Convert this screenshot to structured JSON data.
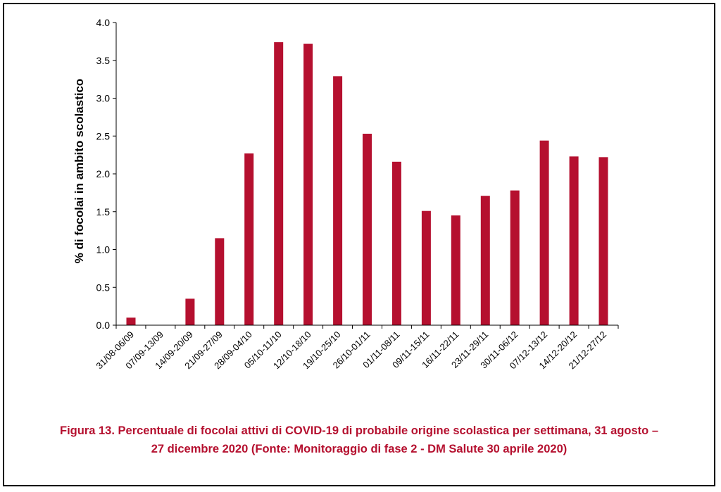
{
  "chart_data": {
    "type": "bar",
    "categories": [
      "31/08-06/09",
      "07/09-13/09",
      "14/09-20/09",
      "21/09-27/09",
      "28/09-04/10",
      "05/10-11/10",
      "12/10-18/10",
      "19/10-25/10",
      "26/10-01/11",
      "01/11-08/11",
      "09/11-15/11",
      "16/11-22/11",
      "23/11-29/11",
      "30/11-06/12",
      "07/12-13/12",
      "14/12-20/12",
      "21/12-27/12"
    ],
    "values": [
      0.1,
      0,
      0.35,
      1.15,
      2.27,
      3.74,
      3.72,
      3.29,
      2.53,
      2.16,
      1.51,
      1.45,
      1.71,
      1.78,
      2.44,
      2.23,
      2.22
    ],
    "ylabel": "% di focolai in ambito scolastico",
    "xlabel": "",
    "ylim": [
      0,
      4
    ],
    "yticks": [
      "0.0",
      "0.5",
      "1.0",
      "1.5",
      "2.0",
      "2.5",
      "3.0",
      "3.5",
      "4.0"
    ],
    "grid": false,
    "colors": {
      "bar": "#b5102f",
      "axis": "#000000"
    }
  },
  "caption": {
    "line1": "Figura 13. Percentuale di focolai attivi di COVID-19 di probabile origine scolastica per settimana, 31 agosto –",
    "line2": "27 dicembre 2020 (Fonte: Monitoraggio di fase 2 - DM Salute 30 aprile 2020)",
    "color": "#b5102f"
  }
}
